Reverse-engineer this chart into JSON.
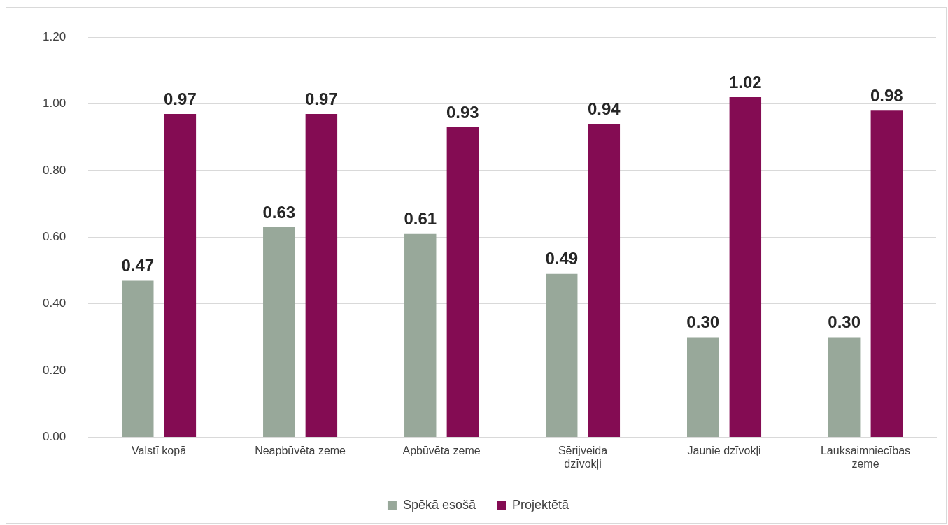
{
  "chart_data": {
    "type": "bar",
    "categories": [
      "Valstī kopā",
      "Neapbūvēta zeme",
      "Apbūvēta zeme",
      "Sērijveida dzīvokļi",
      "Jaunie dzīvokļi",
      "Lauksaimniecības zeme"
    ],
    "series": [
      {
        "name": "Spēkā esošā",
        "color": "#98a89a",
        "values": [
          0.47,
          0.63,
          0.61,
          0.49,
          0.3,
          0.3
        ],
        "value_labels": [
          "0.47",
          "0.63",
          "0.61",
          "0.49",
          "0.30",
          "0.30"
        ]
      },
      {
        "name": "Projektētā",
        "color": "#840c53",
        "values": [
          0.97,
          0.97,
          0.93,
          0.94,
          1.02,
          0.98
        ],
        "value_labels": [
          "0.97",
          "0.97",
          "0.93",
          "0.94",
          "1.02",
          "0.98"
        ]
      }
    ],
    "ylim": [
      0,
      1.2
    ],
    "yticks": [
      {
        "value": 0,
        "label": "0.00"
      },
      {
        "value": 0.2,
        "label": "0.20"
      },
      {
        "value": 0.4,
        "label": "0.40"
      },
      {
        "value": 0.6,
        "label": "0.60"
      },
      {
        "value": 0.8,
        "label": "0.80"
      },
      {
        "value": 1,
        "label": "1.00"
      },
      {
        "value": 1.2,
        "label": "1.20"
      }
    ],
    "grid": "y",
    "legend": "bottom"
  }
}
